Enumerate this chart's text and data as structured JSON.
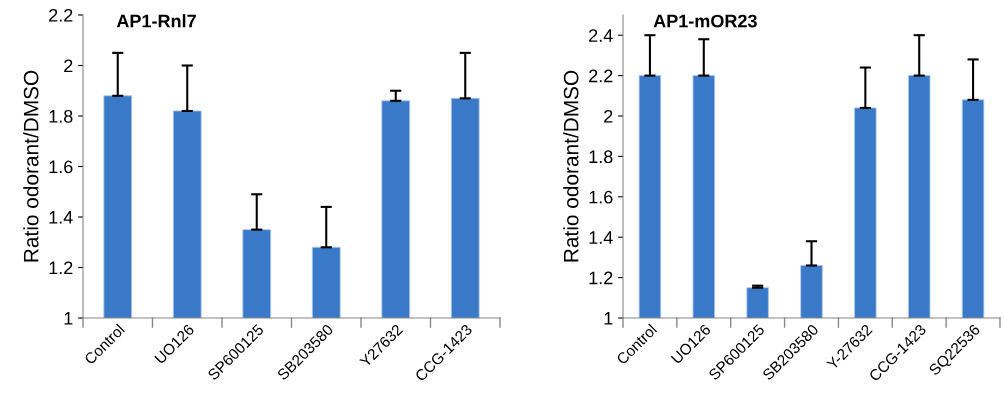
{
  "chart_data": [
    {
      "type": "bar",
      "title": "AP1-Rnl7",
      "ylabel": "Ratio odorant/DMSO",
      "categories": [
        "Control",
        "UO126",
        "SP600125",
        "SB203580",
        "Y27632",
        "CCG-1423"
      ],
      "values": [
        1.88,
        1.82,
        1.35,
        1.28,
        1.86,
        1.87
      ],
      "errors": [
        [
          1.88,
          2.05
        ],
        [
          1.82,
          2.0
        ],
        [
          1.35,
          1.49
        ],
        [
          1.28,
          1.44
        ],
        [
          1.86,
          1.9
        ],
        [
          1.87,
          2.05
        ]
      ],
      "color": "#3a78c8",
      "ylim": [
        1,
        2.2
      ],
      "yticks": [
        1,
        1.2,
        1.4,
        1.6,
        1.8,
        2,
        2.2
      ],
      "grid": false,
      "legend": false
    },
    {
      "type": "bar",
      "title": "AP1-mOR23",
      "ylabel": "Ratio odorant/DMSO",
      "categories": [
        "Control",
        "UO126",
        "SP600125",
        "SB203580",
        "Y-27632",
        "CCG-1423",
        "SQ22536"
      ],
      "values": [
        2.2,
        2.2,
        1.15,
        1.26,
        2.04,
        2.2,
        2.08
      ],
      "errors": [
        [
          2.2,
          2.4
        ],
        [
          2.2,
          2.38
        ],
        [
          1.15,
          1.16
        ],
        [
          1.26,
          1.38
        ],
        [
          2.04,
          2.24
        ],
        [
          2.2,
          2.4
        ],
        [
          2.08,
          2.28
        ]
      ],
      "color": "#3a78c8",
      "ylim": [
        1,
        2.5
      ],
      "yticks": [
        1,
        1.2,
        1.4,
        1.6,
        1.8,
        2,
        2.2,
        2.4
      ],
      "grid": false,
      "legend": false
    }
  ]
}
